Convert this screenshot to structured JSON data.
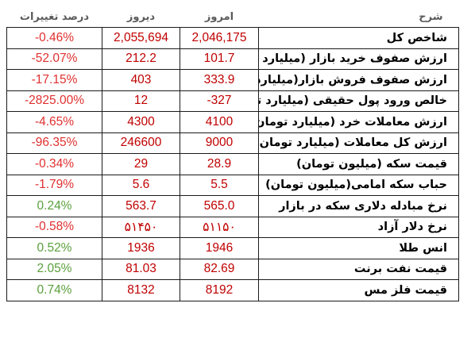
{
  "header": {
    "change": "درصد تغییرات",
    "yesterday": "دیروز",
    "today": "امروز",
    "description": "شرح"
  },
  "rows": [
    {
      "change": "-0.46%",
      "yesterday": "2,055,694",
      "today": "2,046,175",
      "description": "شاخص کل"
    },
    {
      "change": "-52.07%",
      "yesterday": "212.2",
      "today": "101.7",
      "description": "ارزش صفوف خرید بازار (میلیارد تومان)"
    },
    {
      "change": "-17.15%",
      "yesterday": "403",
      "today": "333.9",
      "description": "ارزش صفوف فروش بازار(میلیارد تومان)"
    },
    {
      "change": "-2825.00%",
      "yesterday": "12",
      "today": "-327",
      "description": "خالص ورود پول حقیقی (میلیارد تومان)"
    },
    {
      "change": "-4.65%",
      "yesterday": "4300",
      "today": "4100",
      "description": "ارزش معاملات خرد (میلیارد تومان)"
    },
    {
      "change": "-96.35%",
      "yesterday": "246600",
      "today": "9000",
      "description": "ارزش کل معاملات (میلیارد تومان)"
    },
    {
      "change": "-0.34%",
      "yesterday": "29",
      "today": "28.9",
      "description": "قیمت سکه (میلیون تومان)"
    },
    {
      "change": "-1.79%",
      "yesterday": "5.6",
      "today": "5.5",
      "description": "حباب سکه امامی(میلیون تومان)"
    },
    {
      "change": "0.24%",
      "yesterday": "563.7",
      "today": "565.0",
      "description": "نرخ مبادله دلاری سکه در بازار"
    },
    {
      "change": "-0.58%",
      "yesterday": "۵۱۴۵۰",
      "today": "۵۱۱۵۰",
      "description": "نرخ دلار آزاد"
    },
    {
      "change": "0.52%",
      "yesterday": "1936",
      "today": "1946",
      "description": "انس طلا"
    },
    {
      "change": "2.05%",
      "yesterday": "81.03",
      "today": "82.69",
      "description": "قیمت نفت برنت"
    },
    {
      "change": "0.74%",
      "yesterday": "8132",
      "today": "8192",
      "description": "قیمت فلز مس"
    }
  ],
  "colors": {
    "value_red": "#c00000",
    "change_negative": "#e03030",
    "change_positive": "#5aa03c",
    "header_gray": "#5a5a5a",
    "border": "#1a1a1a"
  }
}
